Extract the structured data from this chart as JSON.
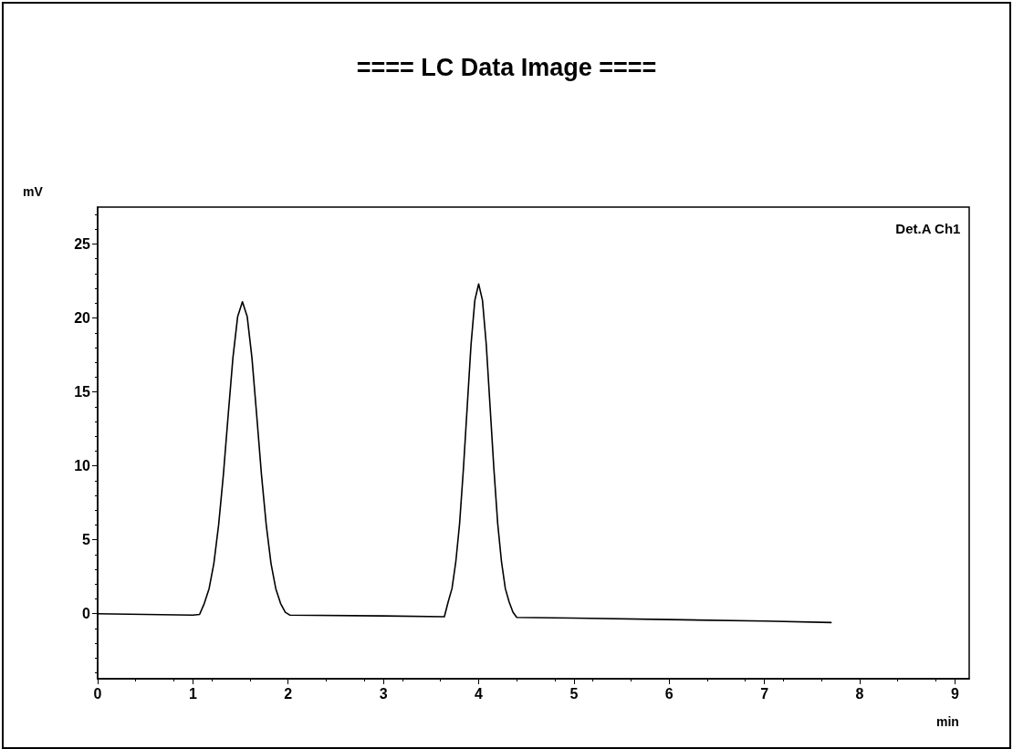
{
  "chart_data": {
    "type": "line",
    "title": "==== LC Data Image ====",
    "xlabel": "min",
    "ylabel": "mV",
    "xlim": [
      0,
      9.15
    ],
    "xticks": [
      0,
      1,
      2,
      3,
      4,
      5,
      6,
      7,
      8,
      9
    ],
    "ylim": [
      -4.4,
      27.5
    ],
    "yticks": [
      0,
      5,
      10,
      15,
      20,
      25
    ],
    "grid": false,
    "legend": "top right",
    "marker": "none",
    "line_style": "solid",
    "series": [
      {
        "name": "Det.A Ch1",
        "color": "#000000",
        "x": [
          0,
          0.5,
          1.0,
          1.07,
          1.12,
          1.17,
          1.22,
          1.27,
          1.32,
          1.37,
          1.42,
          1.47,
          1.52,
          1.57,
          1.62,
          1.67,
          1.72,
          1.77,
          1.82,
          1.87,
          1.92,
          1.97,
          2.02,
          3.0,
          3.64,
          3.68,
          3.72,
          3.76,
          3.8,
          3.84,
          3.88,
          3.92,
          3.96,
          4.0,
          4.04,
          4.08,
          4.12,
          4.16,
          4.2,
          4.24,
          4.28,
          4.32,
          4.36,
          4.4,
          5.0,
          6.0,
          7.0,
          7.7
        ],
        "values": [
          0,
          -0.05,
          -0.1,
          -0.05,
          0.7,
          1.7,
          3.4,
          6.0,
          9.4,
          13.4,
          17.3,
          20.1,
          21.1,
          20.1,
          17.3,
          13.4,
          9.4,
          6.0,
          3.4,
          1.7,
          0.7,
          0.1,
          -0.1,
          -0.15,
          -0.2,
          0.8,
          1.7,
          3.5,
          6.1,
          9.8,
          14.0,
          18.2,
          21.2,
          22.3,
          21.2,
          18.2,
          14.0,
          9.8,
          6.1,
          3.5,
          1.7,
          0.8,
          0.1,
          -0.25,
          -0.3,
          -0.4,
          -0.5,
          -0.6
        ]
      }
    ]
  }
}
